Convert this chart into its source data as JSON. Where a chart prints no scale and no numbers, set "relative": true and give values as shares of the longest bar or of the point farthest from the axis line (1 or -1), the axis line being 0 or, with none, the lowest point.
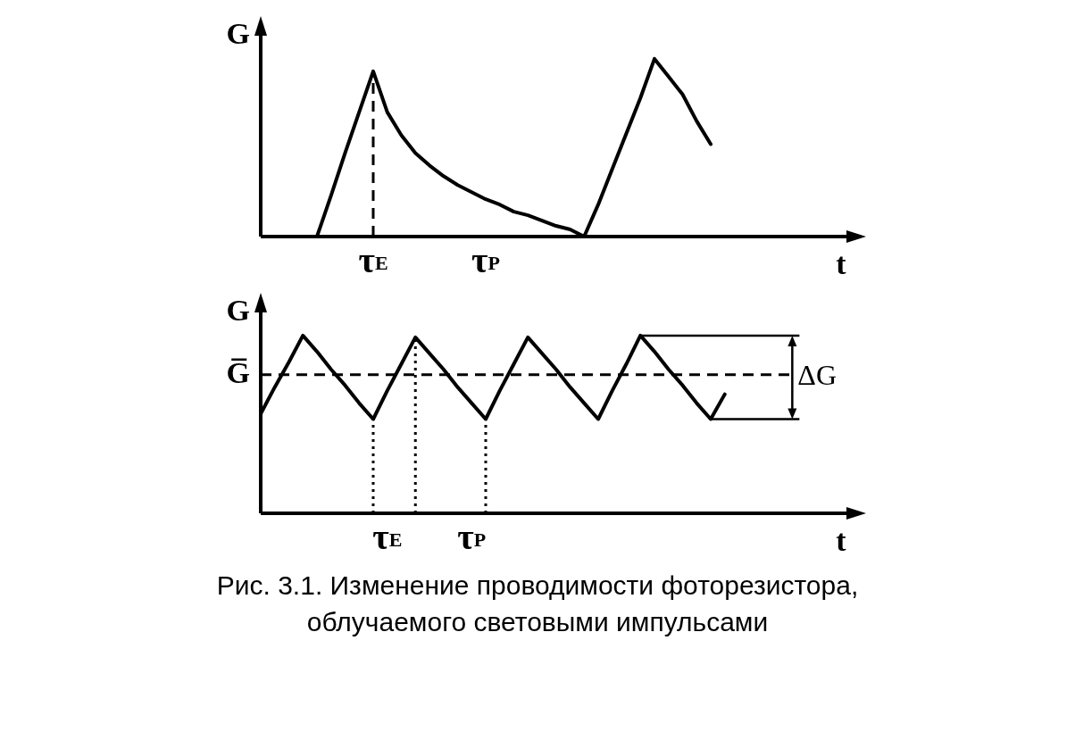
{
  "chart_data": [
    {
      "type": "line",
      "relative": true,
      "xlabel": "t",
      "ylabel": "G",
      "tick_labels": "x",
      "grid": false,
      "legend": false,
      "marker": "none",
      "line_style": "solid",
      "categories": [
        null,
        null,
        null,
        null,
        null,
        null,
        null,
        null,
        "τ$_{E}$",
        null,
        null,
        null,
        null,
        null,
        null,
        null,
        "τ$_{P}$",
        null,
        null,
        null,
        null,
        null,
        null,
        null,
        null,
        null,
        null,
        null,
        null,
        null,
        null,
        null,
        null,
        null,
        null,
        null,
        null,
        null,
        null,
        null,
        null
      ],
      "series": [
        {
          "color": "#000000",
          "values": [
            null,
            null,
            null,
            null,
            0,
            0.23,
            0.47,
            0.7,
            0.93,
            0.7,
            0.57,
            0.47,
            0.4,
            0.34,
            0.29,
            0.25,
            0.21,
            0.18,
            0.14,
            0.12,
            0.09,
            0.06,
            0.04,
            0,
            0.18,
            0.38,
            0.58,
            0.78,
            1.0,
            0.9,
            0.8,
            0.65,
            0.52,
            null,
            null,
            null,
            null,
            null,
            null,
            null,
            null
          ]
        }
      ],
      "ref_lines": [
        {
          "axis": "x",
          "value": "τ$_{E}$",
          "line_style": "dashed"
        }
      ]
    },
    {
      "type": "line",
      "relative": true,
      "xlabel": "t",
      "ylabel": "G",
      "tick_labels": "x",
      "grid": false,
      "legend": false,
      "marker": "none",
      "line_style": "solid",
      "categories": [
        null,
        null,
        null,
        null,
        null,
        null,
        null,
        null,
        null,
        "τ$_{E}$",
        null,
        null,
        null,
        null,
        null,
        "τ$_{P}$",
        null,
        null,
        null,
        null,
        null,
        null,
        null,
        null,
        null,
        null,
        null,
        null,
        null,
        null,
        null,
        null,
        null,
        null,
        null,
        null,
        null,
        null,
        null,
        null,
        null
      ],
      "series": [
        {
          "color": "#000000",
          "values": [
            0.56,
            0.71,
            0.85,
            1.0,
            0.91,
            0.81,
            0.72,
            0.62,
            0.53,
            0.69,
            0.84,
            0.99,
            0.9,
            0.81,
            0.71,
            0.62,
            0.53,
            0.69,
            0.84,
            0.99,
            0.9,
            0.81,
            0.71,
            0.62,
            0.53,
            0.69,
            0.84,
            1.0,
            0.91,
            0.81,
            0.72,
            0.62,
            0.53,
            0.67,
            null,
            null,
            null,
            null,
            null,
            null,
            null
          ]
        }
      ],
      "ref_lines": [
        {
          "axis": "y",
          "value": 0.78,
          "label": "G̅",
          "line_style": "dashed"
        }
      ],
      "annotations": [
        "ΔG",
        "Рис. 3.1. Изменение проводимости фоторезистора, облучаемого световыми импульсами"
      ]
    }
  ]
}
